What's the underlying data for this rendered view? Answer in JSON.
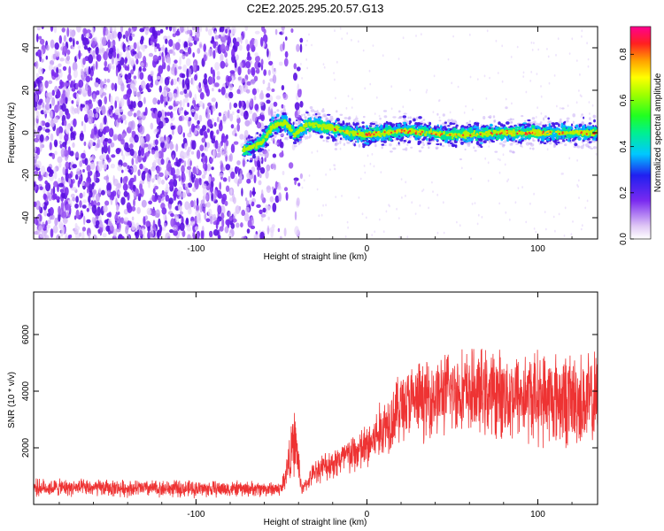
{
  "chart_data": [
    {
      "type": "heatmap",
      "title": "C2E2.2025.295.20.57.G13",
      "xlabel": "Height of straight line (km)",
      "ylabel": "Frequency (Hz)",
      "xlim": [
        -195,
        135
      ],
      "ylim": [
        -50,
        50
      ],
      "xticks": [
        -100,
        0,
        100
      ],
      "yticks": [
        -40,
        -20,
        0,
        20,
        40
      ],
      "colorbar": {
        "label": "Normalized spectral amplitude",
        "range": [
          0,
          0.92
        ],
        "ticks": [
          0.0,
          0.2,
          0.4,
          0.6,
          0.8
        ]
      },
      "features": {
        "noise_region_x": [
          -195,
          -40
        ],
        "echo_trace": [
          {
            "x": -72,
            "f": -8
          },
          {
            "x": -62,
            "f": -5
          },
          {
            "x": -55,
            "f": 3
          },
          {
            "x": -48,
            "f": 5
          },
          {
            "x": -42,
            "f": -1
          },
          {
            "x": -35,
            "f": 4
          },
          {
            "x": -25,
            "f": 3
          },
          {
            "x": -10,
            "f": 0
          },
          {
            "x": 0,
            "f": -1
          },
          {
            "x": 20,
            "f": 1
          },
          {
            "x": 50,
            "f": -1
          },
          {
            "x": 80,
            "f": 0
          },
          {
            "x": 110,
            "f": 0
          },
          {
            "x": 135,
            "f": 0
          }
        ]
      }
    },
    {
      "type": "line",
      "xlabel": "Height of straight line (km)",
      "ylabel": "SNR (10 * v/v)",
      "xlim": [
        -195,
        135
      ],
      "ylim": [
        0,
        7500
      ],
      "xticks": [
        -100,
        0,
        100
      ],
      "yticks": [
        2000,
        4000,
        6000
      ],
      "color": "#ee3333",
      "envelope": [
        {
          "x": -195,
          "mean": 600,
          "spread": 350
        },
        {
          "x": -100,
          "mean": 550,
          "spread": 350
        },
        {
          "x": -50,
          "mean": 550,
          "spread": 300
        },
        {
          "x": -42,
          "mean": 2300,
          "spread": 1400
        },
        {
          "x": -38,
          "mean": 500,
          "spread": 200
        },
        {
          "x": -30,
          "mean": 1200,
          "spread": 500
        },
        {
          "x": 0,
          "mean": 2000,
          "spread": 1000
        },
        {
          "x": 20,
          "mean": 3500,
          "spread": 1500
        },
        {
          "x": 50,
          "mean": 4000,
          "spread": 1700
        },
        {
          "x": 100,
          "mean": 3800,
          "spread": 1900
        },
        {
          "x": 135,
          "mean": 3600,
          "spread": 2000
        }
      ]
    }
  ]
}
